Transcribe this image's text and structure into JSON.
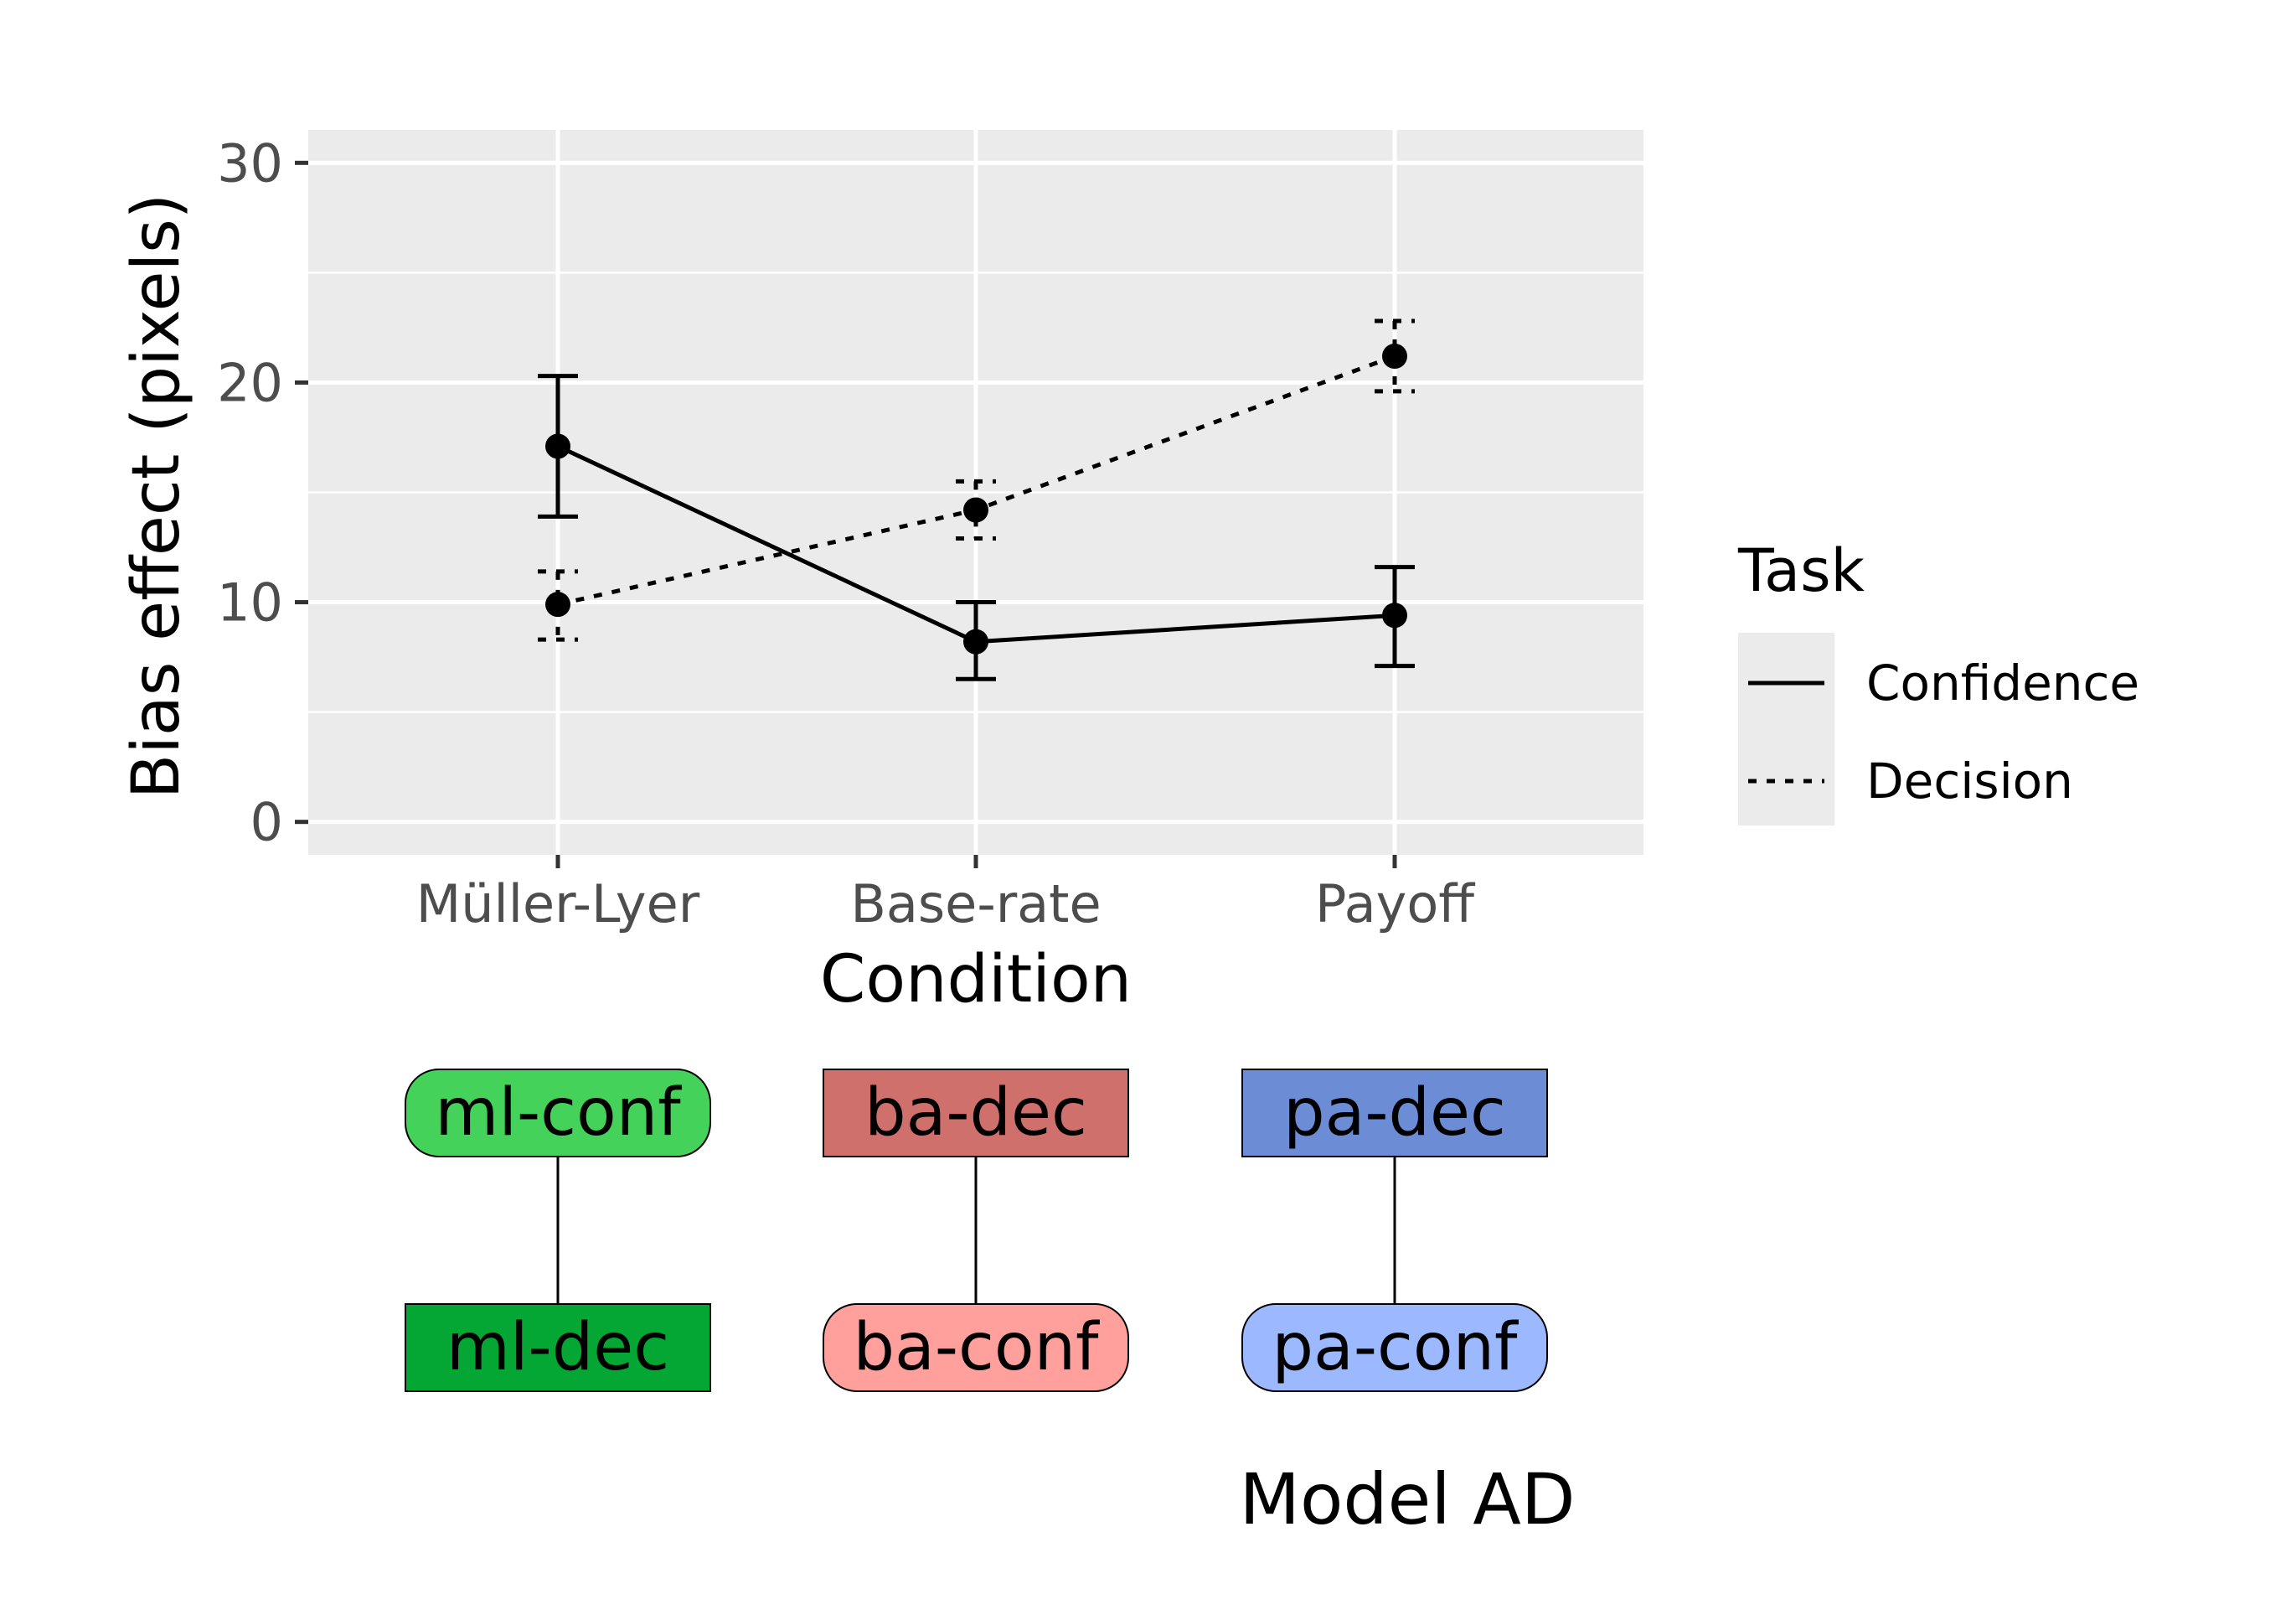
{
  "chart_data": {
    "type": "line",
    "xlabel": "Condition",
    "ylabel": "Bias effect (pixels)",
    "categories": [
      "Müller-Lyer",
      "Base-rate",
      "Payoff"
    ],
    "ylim": [
      -1.5,
      31.5
    ],
    "yticks": [
      0,
      10,
      20,
      30
    ],
    "grid": true,
    "legend": {
      "title": "Task",
      "position": "right"
    },
    "series": [
      {
        "name": "Confidence",
        "linestyle": "solid",
        "values": [
          17.1,
          8.2,
          9.4
        ],
        "error_low": [
          13.9,
          6.5,
          7.1
        ],
        "error_high": [
          20.3,
          10.0,
          11.6
        ]
      },
      {
        "name": "Decision",
        "linestyle": "dotted",
        "values": [
          9.9,
          14.2,
          21.2
        ],
        "error_low": [
          8.3,
          12.9,
          19.6
        ],
        "error_high": [
          11.4,
          15.5,
          22.8
        ]
      }
    ],
    "colors": {
      "panel": "#ebebeb",
      "grid": "#ffffff",
      "ink": "#000000",
      "tick_text": "#4d4d4d"
    }
  },
  "diagram": {
    "title": "Model AD",
    "columns": [
      {
        "top": {
          "label": "ml-conf",
          "shape": "rounded",
          "color": "#45d25a"
        },
        "bottom": {
          "label": "ml-dec",
          "shape": "rect",
          "color": "#04a634"
        }
      },
      {
        "top": {
          "label": "ba-dec",
          "shape": "rect",
          "color": "#d0706c"
        },
        "bottom": {
          "label": "ba-conf",
          "shape": "rounded",
          "color": "#ffa09c"
        }
      },
      {
        "top": {
          "label": "pa-dec",
          "shape": "rect",
          "color": "#6c8cd5"
        },
        "bottom": {
          "label": "pa-conf",
          "shape": "rounded",
          "color": "#9cb8ff"
        }
      }
    ]
  }
}
